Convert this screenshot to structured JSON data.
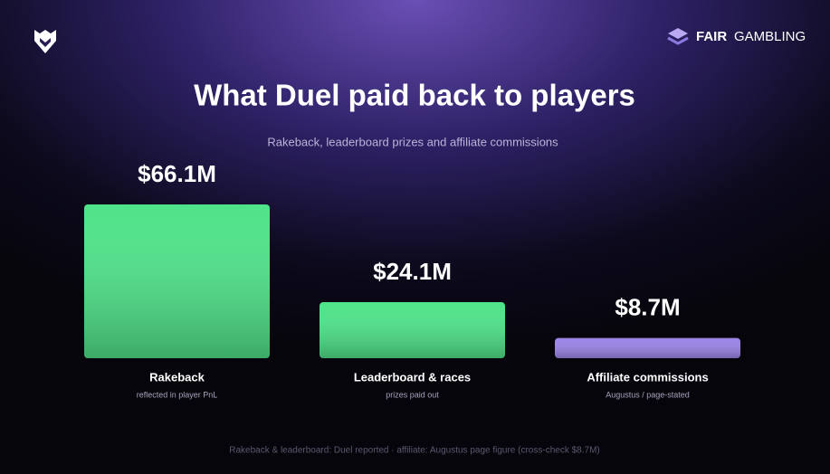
{
  "brand": {
    "strong": "FAIR",
    "light": "GAMBLING"
  },
  "chart_data": {
    "type": "bar",
    "title": "What Duel paid back to players",
    "subtitle": "Rakeback, leaderboard prizes and affiliate commissions",
    "categories": [
      "Rakeback",
      "Leaderboard & races",
      "Affiliate commissions"
    ],
    "category_notes": [
      "reflected in player PnL",
      "prizes paid out",
      "Augustus / page-stated"
    ],
    "values": [
      66.1,
      24.1,
      8.7
    ],
    "value_labels": [
      "$66.1M",
      "$24.1M",
      "$8.7M"
    ],
    "colors": [
      "#4fe389",
      "#4fe389",
      "#9a84e6"
    ],
    "footnote": "Rakeback & leaderboard: Duel reported · affiliate: Augustus page figure (cross-check $8.7M)"
  }
}
